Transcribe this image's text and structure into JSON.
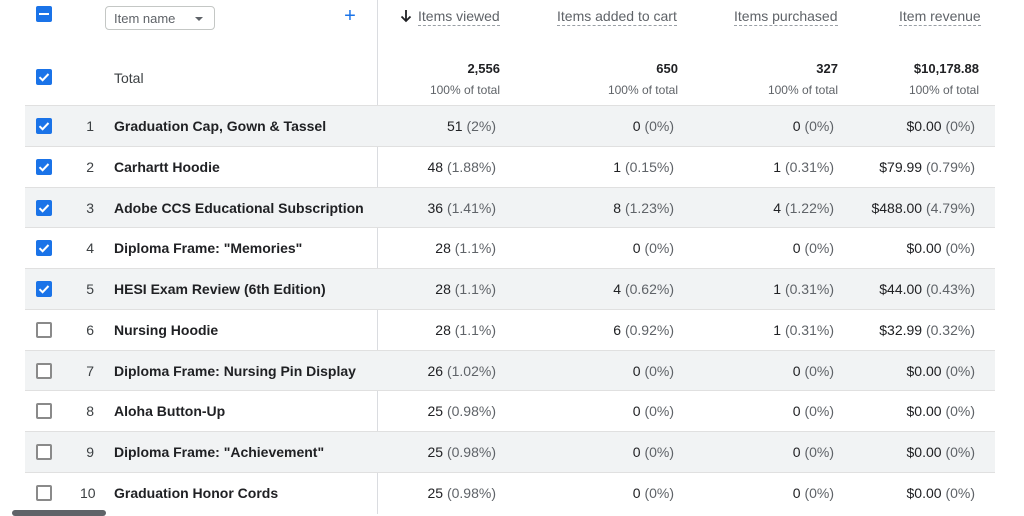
{
  "header": {
    "dimension_label": "Item name",
    "add_label": "+",
    "columns": [
      {
        "label": "Items viewed",
        "sorted": true
      },
      {
        "label": "Items added to cart"
      },
      {
        "label": "Items purchased"
      },
      {
        "label": "Item revenue"
      }
    ]
  },
  "totals": {
    "label": "Total",
    "values": [
      "2,556",
      "650",
      "327",
      "$10,178.88"
    ],
    "subs": [
      "100% of total",
      "100% of total",
      "100% of total",
      "100% of total"
    ]
  },
  "rows": [
    {
      "index": "1",
      "name": "Graduation Cap, Gown & Tassel",
      "checked": true,
      "cells": [
        {
          "v": "51",
          "p": "(2%)"
        },
        {
          "v": "0",
          "p": "(0%)"
        },
        {
          "v": "0",
          "p": "(0%)"
        },
        {
          "v": "$0.00",
          "p": "(0%)"
        }
      ]
    },
    {
      "index": "2",
      "name": "Carhartt Hoodie",
      "checked": true,
      "cells": [
        {
          "v": "48",
          "p": "(1.88%)"
        },
        {
          "v": "1",
          "p": "(0.15%)"
        },
        {
          "v": "1",
          "p": "(0.31%)"
        },
        {
          "v": "$79.99",
          "p": "(0.79%)"
        }
      ]
    },
    {
      "index": "3",
      "name": "Adobe CCS Educational Subscription",
      "checked": true,
      "cells": [
        {
          "v": "36",
          "p": "(1.41%)"
        },
        {
          "v": "8",
          "p": "(1.23%)"
        },
        {
          "v": "4",
          "p": "(1.22%)"
        },
        {
          "v": "$488.00",
          "p": "(4.79%)"
        }
      ]
    },
    {
      "index": "4",
      "name": "Diploma Frame: \"Memories\"",
      "checked": true,
      "cells": [
        {
          "v": "28",
          "p": "(1.1%)"
        },
        {
          "v": "0",
          "p": "(0%)"
        },
        {
          "v": "0",
          "p": "(0%)"
        },
        {
          "v": "$0.00",
          "p": "(0%)"
        }
      ]
    },
    {
      "index": "5",
      "name": "HESI Exam Review (6th Edition)",
      "checked": true,
      "cells": [
        {
          "v": "28",
          "p": "(1.1%)"
        },
        {
          "v": "4",
          "p": "(0.62%)"
        },
        {
          "v": "1",
          "p": "(0.31%)"
        },
        {
          "v": "$44.00",
          "p": "(0.43%)"
        }
      ]
    },
    {
      "index": "6",
      "name": "Nursing Hoodie",
      "checked": false,
      "cells": [
        {
          "v": "28",
          "p": "(1.1%)"
        },
        {
          "v": "6",
          "p": "(0.92%)"
        },
        {
          "v": "1",
          "p": "(0.31%)"
        },
        {
          "v": "$32.99",
          "p": "(0.32%)"
        }
      ]
    },
    {
      "index": "7",
      "name": "Diploma Frame: Nursing Pin Display",
      "checked": false,
      "cells": [
        {
          "v": "26",
          "p": "(1.02%)"
        },
        {
          "v": "0",
          "p": "(0%)"
        },
        {
          "v": "0",
          "p": "(0%)"
        },
        {
          "v": "$0.00",
          "p": "(0%)"
        }
      ]
    },
    {
      "index": "8",
      "name": "Aloha Button-Up",
      "checked": false,
      "cells": [
        {
          "v": "25",
          "p": "(0.98%)"
        },
        {
          "v": "0",
          "p": "(0%)"
        },
        {
          "v": "0",
          "p": "(0%)"
        },
        {
          "v": "$0.00",
          "p": "(0%)"
        }
      ]
    },
    {
      "index": "9",
      "name": "Diploma Frame: \"Achievement\"",
      "checked": false,
      "cells": [
        {
          "v": "25",
          "p": "(0.98%)"
        },
        {
          "v": "0",
          "p": "(0%)"
        },
        {
          "v": "0",
          "p": "(0%)"
        },
        {
          "v": "$0.00",
          "p": "(0%)"
        }
      ]
    },
    {
      "index": "10",
      "name": "Graduation Honor Cords",
      "checked": false,
      "cells": [
        {
          "v": "25",
          "p": "(0.98%)"
        },
        {
          "v": "0",
          "p": "(0%)"
        },
        {
          "v": "0",
          "p": "(0%)"
        },
        {
          "v": "$0.00",
          "p": "(0%)"
        }
      ]
    }
  ],
  "colors": {
    "accent": "#1a73e8",
    "row_shade": "#f1f3f4",
    "divider": "#e0e0e0"
  },
  "icons": {
    "sort": "arrow-down-icon",
    "dropdown": "caret-down-icon",
    "add": "plus-icon"
  }
}
